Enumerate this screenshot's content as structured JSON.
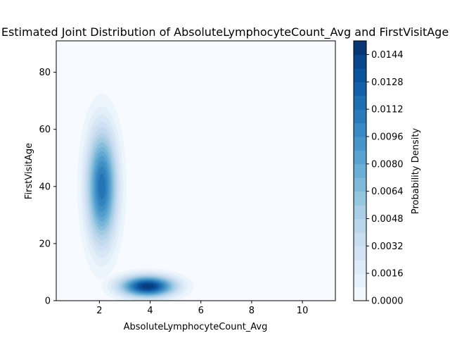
{
  "chart_data": {
    "type": "kde-contour",
    "title": "Estimated Joint Distribution of AbsoluteLymphocyteCount_Avg and FirstVisitAge",
    "xlabel": "AbsoluteLymphocyteCount_Avg",
    "ylabel": "FirstVisitAge",
    "xlim": [
      0.3,
      11.3
    ],
    "ylim": [
      0,
      91
    ],
    "xticks": [
      "2",
      "4",
      "6",
      "8",
      "10"
    ],
    "yticks": [
      "0",
      "20",
      "40",
      "60",
      "80"
    ],
    "xtick_values": [
      2,
      4,
      6,
      8,
      10
    ],
    "ytick_values": [
      0,
      20,
      40,
      60,
      80
    ],
    "colormap": "Blues",
    "colorbar": {
      "label": "Probability Density",
      "min": 0.0,
      "max": 0.0152,
      "step": 0.0008,
      "ticks": [
        "0.0000",
        "0.0016",
        "0.0032",
        "0.0048",
        "0.0064",
        "0.0080",
        "0.0096",
        "0.0112",
        "0.0128",
        "0.0144"
      ],
      "tick_values": [
        0.0,
        0.0016,
        0.0032,
        0.0048,
        0.0064,
        0.008,
        0.0096,
        0.0112,
        0.0128,
        0.0144
      ]
    },
    "components": [
      {
        "x": 2.1,
        "y": 40,
        "sx": 0.42,
        "sy": 14,
        "peak": 0.0118
      },
      {
        "x": 3.9,
        "y": 5,
        "sx": 0.75,
        "sy": 2.6,
        "peak": 0.0152
      }
    ],
    "grid": false,
    "legend": "none"
  },
  "colors": {
    "background": "#f7fbff",
    "darkest": "#08306b",
    "axis": "#000000"
  }
}
